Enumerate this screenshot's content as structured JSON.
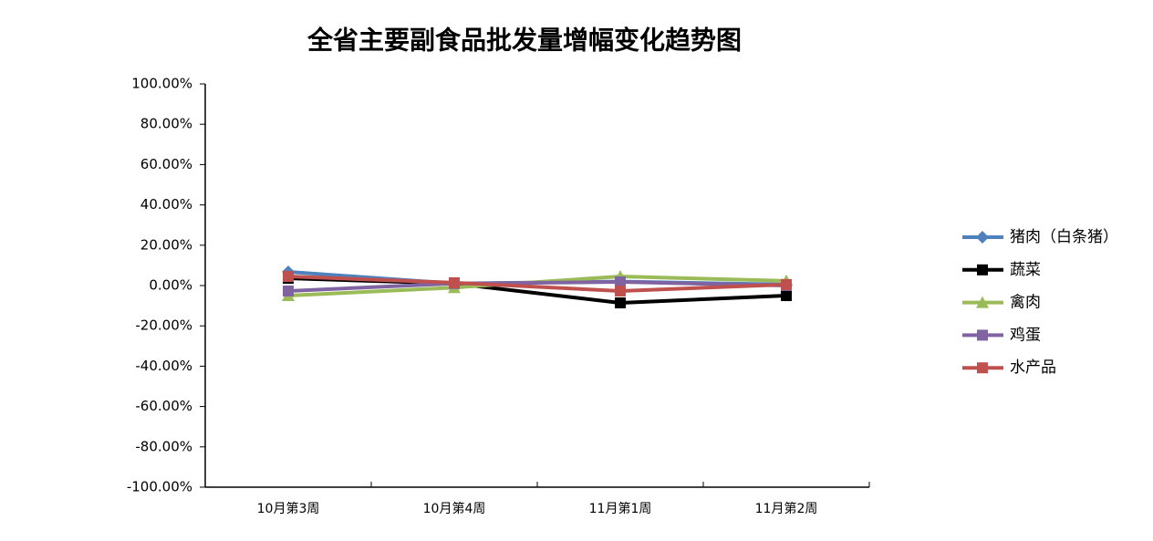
{
  "chart_data": {
    "type": "line",
    "title": "全省主要副食品批发量增幅变化趋势图",
    "categories": [
      "10月第3周",
      "10月第4周",
      "11月第1周",
      "11月第2周"
    ],
    "series": [
      {
        "name": "猪肉（白条猪）",
        "color": "#4f81bd",
        "marker": "diamond",
        "values": [
          6.8,
          1,
          2,
          0.5
        ]
      },
      {
        "name": "蔬菜",
        "color": "#000000",
        "marker": "square",
        "values": [
          3.6,
          1,
          -8.6,
          -5
        ]
      },
      {
        "name": "禽肉",
        "color": "#9bbb59",
        "marker": "triangle",
        "values": [
          -5,
          -1,
          4.5,
          2.3
        ]
      },
      {
        "name": "鸡蛋",
        "color": "#8064a2",
        "marker": "square",
        "values": [
          -2.7,
          1,
          1.8,
          0
        ]
      },
      {
        "name": "水产品",
        "color": "#c0504d",
        "marker": "square",
        "values": [
          4.5,
          1.4,
          -2.7,
          0.5
        ]
      }
    ],
    "ylim": [
      -100,
      100
    ],
    "yticks": [
      {
        "value": 100,
        "label": "100.00%"
      },
      {
        "value": 80,
        "label": "80.00%"
      },
      {
        "value": 60,
        "label": "60.00%"
      },
      {
        "value": 40,
        "label": "40.00%"
      },
      {
        "value": 20,
        "label": "20.00%"
      },
      {
        "value": 0,
        "label": "0.00%"
      },
      {
        "value": -20,
        "label": "-20.00%"
      },
      {
        "value": -40,
        "label": "-40.00%"
      },
      {
        "value": -60,
        "label": "-60.00%"
      },
      {
        "value": -80,
        "label": "-80.00%"
      },
      {
        "value": -100,
        "label": "-100.00%"
      }
    ],
    "grid": false,
    "legend": "right"
  }
}
